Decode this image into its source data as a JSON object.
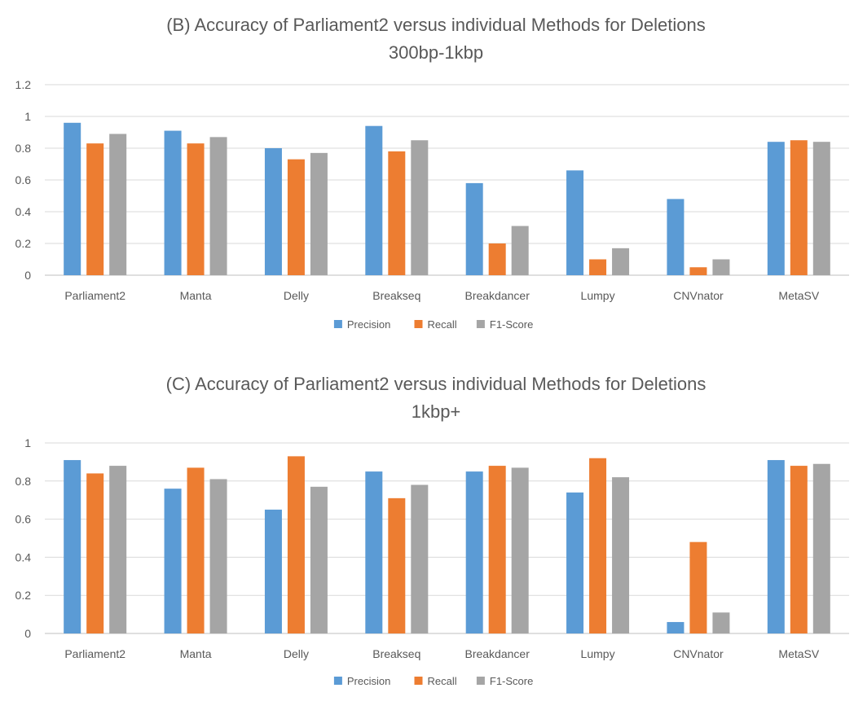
{
  "chart_data": [
    {
      "type": "bar",
      "title": "(B) Accuracy of Parliament2 versus individual Methods for Deletions",
      "subtitle": "300bp-1kbp",
      "categories": [
        "Parliament2",
        "Manta",
        "Delly",
        "Breakseq",
        "Breakdancer",
        "Lumpy",
        "CNVnator",
        "MetaSV"
      ],
      "series": [
        {
          "name": "Precision",
          "color": "#5b9bd5",
          "values": [
            0.96,
            0.91,
            0.8,
            0.94,
            0.58,
            0.66,
            0.48,
            0.84
          ]
        },
        {
          "name": "Recall",
          "color": "#ed7d31",
          "values": [
            0.83,
            0.83,
            0.73,
            0.78,
            0.2,
            0.1,
            0.05,
            0.85
          ]
        },
        {
          "name": "F1-Score",
          "color": "#a5a5a5",
          "values": [
            0.89,
            0.87,
            0.77,
            0.85,
            0.31,
            0.17,
            0.1,
            0.84
          ]
        }
      ],
      "ylim": [
        0,
        1.2
      ],
      "yticks": [
        "0",
        "0.2",
        "0.4",
        "0.6",
        "0.8",
        "1",
        "1.2"
      ],
      "xlabel": "",
      "ylabel": "",
      "grid": true,
      "legend_position": "bottom"
    },
    {
      "type": "bar",
      "title": "(C) Accuracy of Parliament2 versus individual Methods for Deletions",
      "subtitle": "1kbp+",
      "categories": [
        "Parliament2",
        "Manta",
        "Delly",
        "Breakseq",
        "Breakdancer",
        "Lumpy",
        "CNVnator",
        "MetaSV"
      ],
      "series": [
        {
          "name": "Precision",
          "color": "#5b9bd5",
          "values": [
            0.91,
            0.76,
            0.65,
            0.85,
            0.85,
            0.74,
            0.06,
            0.91
          ]
        },
        {
          "name": "Recall",
          "color": "#ed7d31",
          "values": [
            0.84,
            0.87,
            0.93,
            0.71,
            0.88,
            0.92,
            0.48,
            0.88
          ]
        },
        {
          "name": "F1-Score",
          "color": "#a5a5a5",
          "values": [
            0.88,
            0.81,
            0.77,
            0.78,
            0.87,
            0.82,
            0.11,
            0.89
          ]
        }
      ],
      "ylim": [
        0,
        1
      ],
      "yticks": [
        "0",
        "0.2",
        "0.4",
        "0.6",
        "0.8",
        "1"
      ],
      "xlabel": "",
      "ylabel": "",
      "grid": true,
      "legend_position": "bottom"
    }
  ]
}
